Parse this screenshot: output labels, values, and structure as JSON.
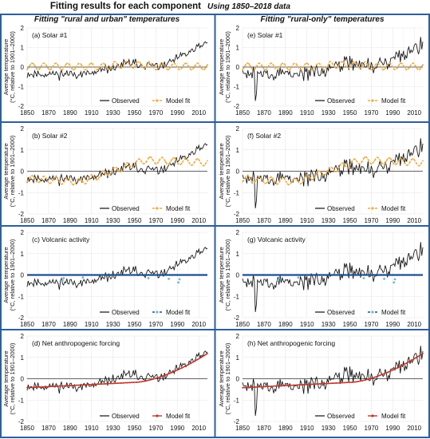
{
  "figure": {
    "title": "Fitting results for each component",
    "subtitle": "Using 1850–2018 data",
    "column_headers": [
      "Fitting \"rural and urban\" temperatures",
      "Fitting \"rural-only\" temperatures"
    ],
    "ylabel_line1": "Average temperature",
    "ylabel_line2": "(°C, relative to 1901–2000)",
    "legend_observed": "Observed",
    "legend_model": "Model fit",
    "colors": {
      "border": "#2e5f9a",
      "observed": "#111111",
      "solar": "#f2a93b",
      "volcanic_line": "#1f4f8f",
      "volcanic_points": "#6fb7d6",
      "anthropogenic": "#c0392b",
      "grid": "#e6e6e6"
    }
  },
  "chart_data": [
    {
      "id": "a",
      "type": "line",
      "title": "(a) Solar #1",
      "model_kind": "solar1",
      "xlim": [
        1850,
        2018
      ],
      "ylim": [
        -2,
        2
      ],
      "grid": true,
      "legend": "bottom-right",
      "x_ticks": [
        1850,
        1870,
        1890,
        1910,
        1930,
        1950,
        1970,
        1990,
        2010
      ],
      "y_ticks": [
        -2,
        -1,
        0,
        1,
        2
      ],
      "series": [
        {
          "name": "Observed",
          "x_range": [
            1850,
            2018
          ],
          "values_desc": "annual anomaly ~ -0.3 to -0.5 before 1920, rising to ~1.3 by 2016"
        },
        {
          "name": "Model fit",
          "x_range": [
            1850,
            2018
          ],
          "values_desc": "solar fit oscillating ~ -0.2 to +0.2 (11-yr cycle)"
        }
      ]
    },
    {
      "id": "b",
      "type": "line",
      "title": "(b) Solar #2",
      "model_kind": "solar2",
      "xlim": [
        1850,
        2018
      ],
      "ylim": [
        -2,
        2
      ],
      "grid": true,
      "legend": "bottom-right",
      "x_ticks": [
        1850,
        1870,
        1890,
        1910,
        1930,
        1950,
        1970,
        1990,
        2010
      ],
      "y_ticks": [
        -2,
        -1,
        0,
        1,
        2
      ],
      "series": [
        {
          "name": "Observed",
          "x_range": [
            1850,
            2018
          ]
        },
        {
          "name": "Model fit",
          "x_range": [
            1850,
            2018
          ],
          "values_desc": "rising from ~ -0.4 (1850) to ~0.5 (1960), then ~0.4 to 0.6"
        }
      ]
    },
    {
      "id": "c",
      "type": "line",
      "title": "(c) Volcanic activity",
      "model_kind": "volcanic",
      "xlim": [
        1850,
        2018
      ],
      "ylim": [
        -2,
        2
      ],
      "grid": true,
      "legend": "bottom-right",
      "x_ticks": [
        1850,
        1870,
        1890,
        1910,
        1930,
        1950,
        1970,
        1990,
        2010
      ],
      "y_ticks": [
        -2,
        -1,
        0,
        1,
        2
      ],
      "series": [
        {
          "name": "Observed",
          "x_range": [
            1850,
            2018
          ]
        },
        {
          "name": "Model fit",
          "x_range": [
            1850,
            2018
          ],
          "values_desc": "near 0 with dips at 1883, 1902, 1963, 1982, 1991"
        }
      ]
    },
    {
      "id": "d",
      "type": "line",
      "title": "(d) Net anthropogenic forcing",
      "model_kind": "anthro",
      "xlim": [
        1850,
        2018
      ],
      "ylim": [
        -2,
        2
      ],
      "grid": true,
      "legend": "bottom-right",
      "x_ticks": [
        1850,
        1870,
        1890,
        1910,
        1930,
        1950,
        1970,
        1990,
        2010
      ],
      "y_ticks": [
        -2,
        -1,
        0,
        1,
        2
      ],
      "series": [
        {
          "name": "Observed",
          "x_range": [
            1850,
            2018
          ]
        },
        {
          "name": "Model fit",
          "x_range": [
            1850,
            2018
          ],
          "values_desc": "~ -0.4 flat until 1950, rising to ~1.2 by 2018"
        }
      ]
    },
    {
      "id": "e",
      "type": "line",
      "title": "(e) Solar #1",
      "model_kind": "solar1",
      "xlim": [
        1850,
        2018
      ],
      "ylim": [
        -2,
        2
      ],
      "grid": true,
      "legend": "bottom-right",
      "x_ticks": [
        1850,
        1870,
        1890,
        1910,
        1930,
        1950,
        1970,
        1990,
        2010
      ],
      "y_ticks": [
        -2,
        -1,
        0,
        1,
        2
      ],
      "series": [
        {
          "name": "Observed",
          "x_range": [
            1850,
            2018
          ],
          "values_desc": "rural-only series, larger variance, dip to ~ -2 near 1862"
        },
        {
          "name": "Model fit",
          "x_range": [
            1850,
            2018
          ]
        }
      ]
    },
    {
      "id": "f",
      "type": "line",
      "title": "(f) Solar #2",
      "model_kind": "solar2",
      "xlim": [
        1850,
        2018
      ],
      "ylim": [
        -2,
        2
      ],
      "grid": true,
      "legend": "bottom-right",
      "x_ticks": [
        1850,
        1870,
        1890,
        1910,
        1930,
        1950,
        1970,
        1990,
        2010
      ],
      "y_ticks": [
        -2,
        -1,
        0,
        1,
        2
      ],
      "series": [
        {
          "name": "Observed",
          "x_range": [
            1850,
            2018
          ]
        },
        {
          "name": "Model fit",
          "x_range": [
            1850,
            2018
          ]
        }
      ]
    },
    {
      "id": "g",
      "type": "line",
      "title": "(g) Volcanic activity",
      "model_kind": "volcanic",
      "xlim": [
        1850,
        2018
      ],
      "ylim": [
        -2,
        2
      ],
      "grid": true,
      "legend": "bottom-right",
      "x_ticks": [
        1850,
        1870,
        1890,
        1910,
        1930,
        1950,
        1970,
        1990,
        2010
      ],
      "y_ticks": [
        -2,
        -1,
        0,
        1,
        2
      ],
      "series": [
        {
          "name": "Observed",
          "x_range": [
            1850,
            2018
          ]
        },
        {
          "name": "Model fit",
          "x_range": [
            1850,
            2018
          ]
        }
      ]
    },
    {
      "id": "h",
      "type": "line",
      "title": "(h) Net anthropogenic forcing",
      "model_kind": "anthro",
      "xlim": [
        1850,
        2018
      ],
      "ylim": [
        -2,
        2
      ],
      "grid": true,
      "legend": "bottom-right",
      "x_ticks": [
        1850,
        1870,
        1890,
        1910,
        1930,
        1950,
        1970,
        1990,
        2010
      ],
      "y_ticks": [
        -2,
        -1,
        0,
        1,
        2
      ],
      "series": [
        {
          "name": "Observed",
          "x_range": [
            1850,
            2018
          ]
        },
        {
          "name": "Model fit",
          "x_range": [
            1850,
            2018
          ]
        }
      ]
    }
  ]
}
